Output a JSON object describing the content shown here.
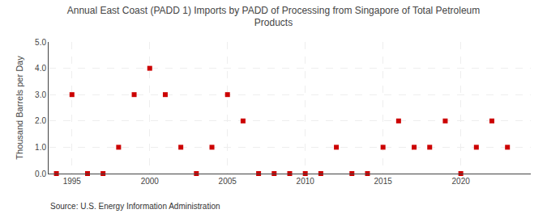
{
  "chart_data": {
    "type": "scatter",
    "title": "Annual East Coast (PADD 1) Imports by PADD of Processing from Singapore of Total Petroleum\nProducts",
    "ylabel": "Thousand Barrels per Day",
    "annotations": [
      "Source: U.S. Energy Information Administration"
    ],
    "x": [
      1994,
      1995,
      1996,
      1997,
      1998,
      1999,
      2000,
      2001,
      2002,
      2003,
      2004,
      2005,
      2006,
      2007,
      2008,
      2009,
      2010,
      2011,
      2012,
      2013,
      2014,
      2015,
      2016,
      2017,
      2018,
      2019,
      2020,
      2021,
      2022,
      2023
    ],
    "values": [
      0.0,
      3.0,
      0.0,
      0.0,
      1.0,
      3.0,
      4.0,
      3.0,
      1.0,
      0.0,
      1.0,
      3.0,
      2.0,
      0.0,
      0.0,
      0.0,
      0.0,
      0.0,
      1.0,
      0.0,
      0.0,
      1.0,
      2.0,
      1.0,
      1.0,
      2.0,
      0.0,
      1.0,
      2.0,
      1.0
    ],
    "color": "#cc0000",
    "marker": "square",
    "xlim": [
      1993.5,
      2024.5
    ],
    "xticks": [
      1995,
      2000,
      2005,
      2010,
      2015,
      2020
    ],
    "ylim": [
      0.0,
      5.0
    ],
    "yticks": [
      {
        "value": 0.0,
        "label": "0.0"
      },
      {
        "value": 1.0,
        "label": "1.0"
      },
      {
        "value": 2.0,
        "label": "2.0"
      },
      {
        "value": 3.0,
        "label": "3.0"
      },
      {
        "value": 4.0,
        "label": "4.0"
      },
      {
        "value": 5.0,
        "label": "5.0"
      }
    ],
    "grid": true
  }
}
